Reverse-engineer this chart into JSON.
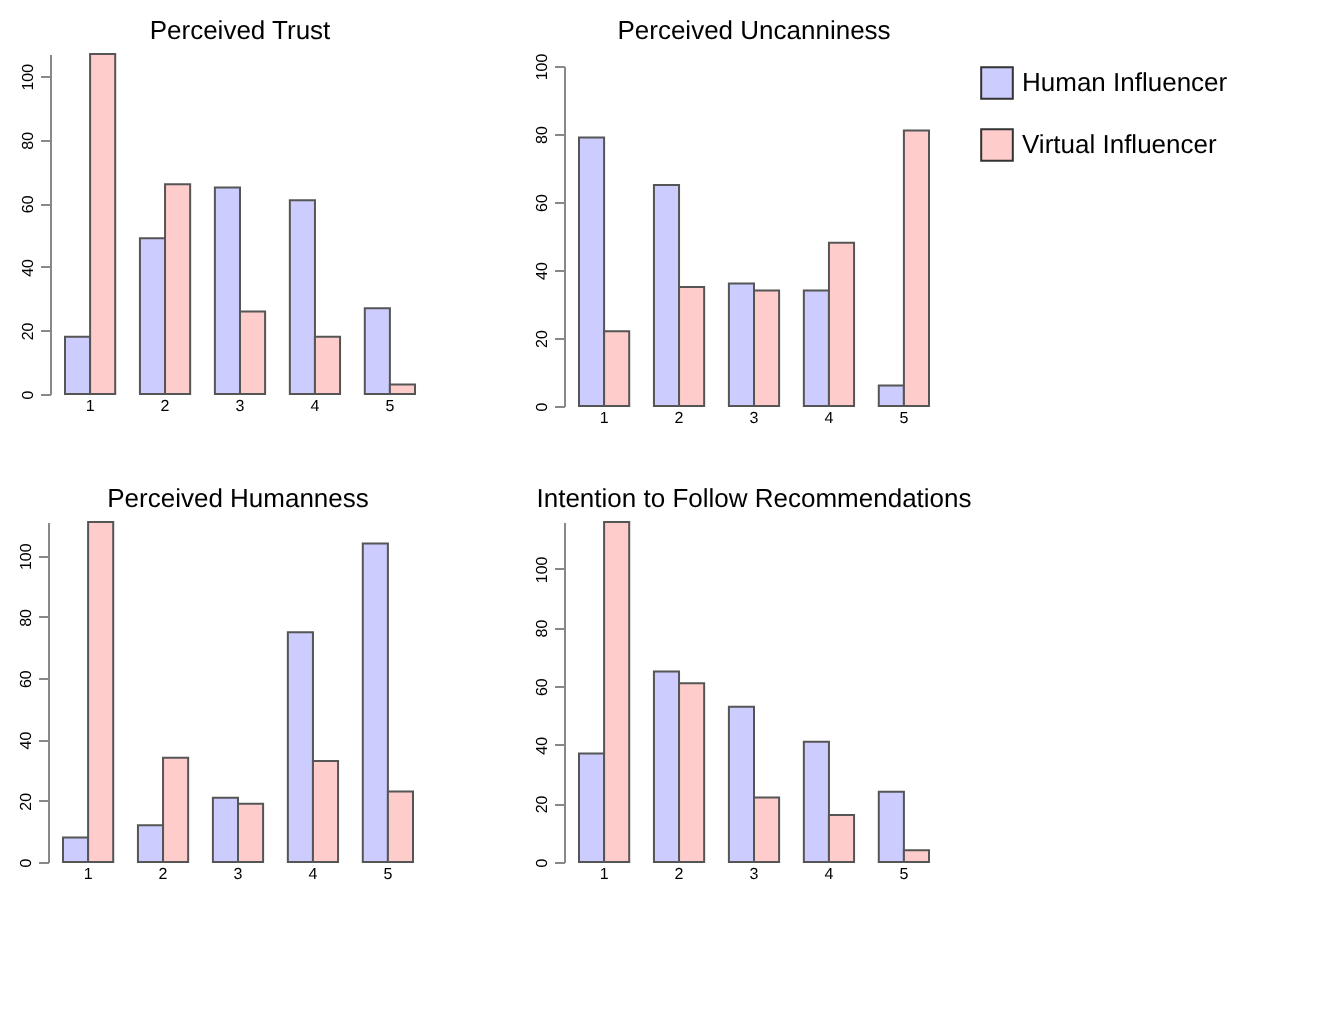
{
  "chart_data": [
    {
      "type": "bar",
      "title": "Perceived Trust",
      "categories": [
        "1",
        "2",
        "3",
        "4",
        "5"
      ],
      "ylim": [
        0,
        107
      ],
      "yticks": [
        0,
        20,
        40,
        60,
        80,
        100
      ],
      "series": [
        {
          "color": "#ccccff",
          "values": [
            18,
            49,
            65,
            61,
            27
          ]
        },
        {
          "color": "#ffcccc",
          "values": [
            107,
            66,
            26,
            18,
            3
          ]
        }
      ]
    },
    {
      "type": "bar",
      "title": "Perceived Uncanniness",
      "categories": [
        "1",
        "2",
        "3",
        "4",
        "5"
      ],
      "ylim": [
        0,
        100
      ],
      "yticks": [
        0,
        20,
        40,
        60,
        80,
        100
      ],
      "legend": "right",
      "series": [
        {
          "name": "Human Influencer",
          "color": "#ccccff",
          "values": [
            79,
            65,
            36,
            34,
            6
          ]
        },
        {
          "name": "Virtual Influencer",
          "color": "#ffcccc",
          "values": [
            22,
            35,
            34,
            48,
            81
          ]
        }
      ]
    },
    {
      "type": "bar",
      "title": "Perceived Humanness",
      "categories": [
        "1",
        "2",
        "3",
        "4",
        "5"
      ],
      "ylim": [
        0,
        111
      ],
      "yticks": [
        0,
        20,
        40,
        60,
        80,
        100
      ],
      "series": [
        {
          "color": "#ccccff",
          "values": [
            8,
            12,
            21,
            75,
            104
          ]
        },
        {
          "color": "#ffcccc",
          "values": [
            111,
            34,
            19,
            33,
            23
          ]
        }
      ]
    },
    {
      "type": "bar",
      "title": "Intention to Follow Recommendations",
      "categories": [
        "1",
        "2",
        "3",
        "4",
        "5"
      ],
      "ylim": [
        0,
        116
      ],
      "yticks": [
        0,
        20,
        40,
        60,
        80,
        100
      ],
      "series": [
        {
          "color": "#ccccff",
          "values": [
            37,
            65,
            53,
            41,
            24
          ]
        },
        {
          "color": "#ffcccc",
          "values": [
            116,
            61,
            22,
            16,
            4
          ]
        }
      ]
    }
  ]
}
